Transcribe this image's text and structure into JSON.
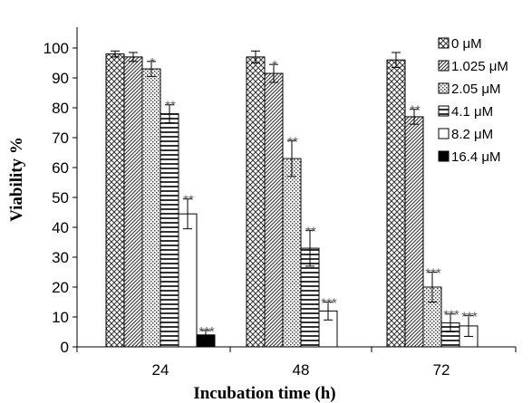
{
  "chart_data": {
    "type": "bar",
    "title": "",
    "xlabel": "Incubation time (h)",
    "ylabel": "Viability %",
    "ylim": [
      0,
      100
    ],
    "yticks": [
      0,
      10,
      20,
      30,
      40,
      50,
      60,
      70,
      80,
      90,
      100
    ],
    "categories": [
      "24",
      "48",
      "72"
    ],
    "grid": false,
    "legend_position": "right",
    "series": [
      {
        "name": "0 μM",
        "pattern": "crosshatch",
        "values": [
          98,
          97,
          96
        ],
        "errors": [
          1,
          2,
          2.5
        ],
        "sig": [
          "",
          "",
          ""
        ]
      },
      {
        "name": "1.025 μM",
        "pattern": "diagonal",
        "values": [
          97,
          91.5,
          77
        ],
        "errors": [
          1.5,
          3,
          2.5
        ],
        "sig": [
          "",
          "*",
          "**"
        ]
      },
      {
        "name": "2.05 μM",
        "pattern": "dots",
        "values": [
          93,
          63,
          20
        ],
        "errors": [
          2.5,
          6,
          5
        ],
        "sig": [
          "*",
          "**",
          "***"
        ]
      },
      {
        "name": "4.1 μM",
        "pattern": "horizontal",
        "values": [
          78,
          33,
          8
        ],
        "errors": [
          3,
          6,
          3
        ],
        "sig": [
          "**",
          "**",
          "***"
        ]
      },
      {
        "name": "8.2 μM",
        "pattern": "white",
        "values": [
          44.5,
          12,
          7
        ],
        "errors": [
          5,
          3,
          3.5
        ],
        "sig": [
          "**",
          "***",
          "***"
        ]
      },
      {
        "name": "16.4 μM",
        "pattern": "black",
        "values": [
          4,
          null,
          null
        ],
        "errors": [
          1.5,
          null,
          null
        ],
        "sig": [
          "***",
          "",
          ""
        ]
      }
    ]
  }
}
